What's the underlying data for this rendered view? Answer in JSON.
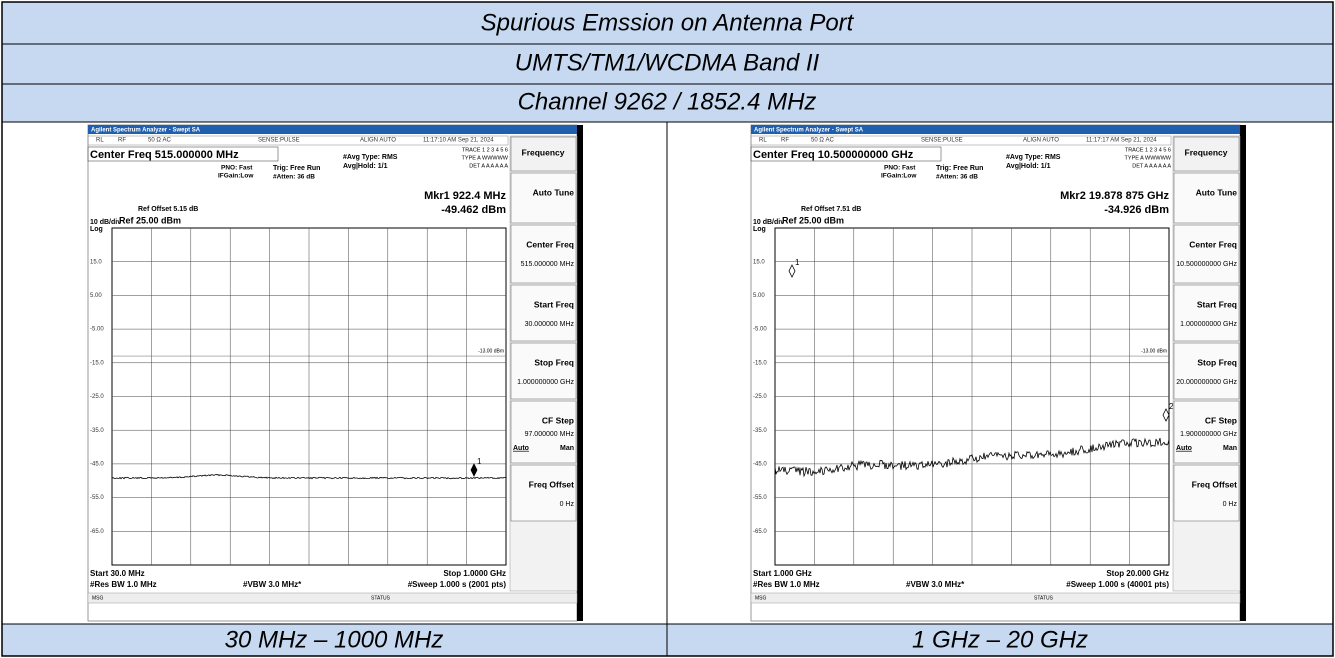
{
  "header": {
    "rows": [
      "Spurious Emssion on Antenna Port",
      "UMTS/TM1/WCDMA Band II",
      "Channel 9262 / 1852.4 MHz"
    ]
  },
  "panels": [
    {
      "window_title": "Agilent Spectrum Analyzer - Swept SA",
      "status_bar": [
        "RL",
        "RF",
        "50 Ω  AC",
        "SENSE:PULSE",
        "ALIGN AUTO",
        "11:17:10 AM Sep 21, 2024"
      ],
      "center_freq": "Center Freq 515.000000 MHz",
      "pno": "PNO: Fast",
      "ifgain": "IFGain:Low",
      "trig": "Trig: Free Run",
      "atten": "#Atten: 36 dB",
      "avg_type": "#Avg Type: RMS",
      "avg_hold": "Avg|Hold: 1/1",
      "trace_info": [
        "TRACE 1 2 3 4 5 6",
        "TYPE A WWWWW",
        "DET A A A A A A"
      ],
      "ref_offset": "Ref Offset 5.15 dB",
      "scale": "10 dB/div",
      "log": "Log",
      "ref_level": "Ref 25.00 dBm",
      "marker_freq": "Mkr1 922.4 MHz",
      "marker_level": "-49.462 dBm",
      "yticks": [
        "15.0",
        "5.00",
        "-5.00",
        "-15.0",
        "-25.0",
        "-35.0",
        "-45.0",
        "-55.0",
        "-65.0"
      ],
      "limit_label": "-13.00 dBm",
      "markers": [
        "1"
      ],
      "start": "Start 30.0 MHz",
      "stop": "Stop 1.0000 GHz",
      "rbw": "#Res BW 1.0 MHz",
      "vbw": "#VBW 3.0 MHz*",
      "sweep": "#Sweep  1.000 s (2001 pts)",
      "msg": "MSG",
      "status": "STATUS",
      "softkeys": [
        {
          "label": "Frequency"
        },
        {
          "label": "Auto Tune"
        },
        {
          "label": "Center Freq",
          "value": "515.000000 MHz"
        },
        {
          "label": "Start Freq",
          "value": "30.000000 MHz"
        },
        {
          "label": "Stop Freq",
          "value": "1.000000000 GHz"
        },
        {
          "label": "CF Step",
          "value": "97.000000 MHz",
          "extra": [
            "Auto",
            "Man"
          ]
        },
        {
          "label": "Freq Offset",
          "value": "0 Hz"
        }
      ]
    },
    {
      "window_title": "Agilent Spectrum Analyzer - Swept SA",
      "status_bar": [
        "RL",
        "RF",
        "50 Ω  AC",
        "SENSE:PULSE",
        "ALIGN AUTO",
        "11:17:17 AM Sep 21, 2024"
      ],
      "center_freq": "Center Freq 10.500000000 GHz",
      "pno": "PNO: Fast",
      "ifgain": "IFGain:Low",
      "trig": "Trig: Free Run",
      "atten": "#Atten: 36 dB",
      "avg_type": "#Avg Type: RMS",
      "avg_hold": "Avg|Hold: 1/1",
      "trace_info": [
        "TRACE 1 2 3 4 5 6",
        "TYPE A WWWWW",
        "DET A A A A A A"
      ],
      "ref_offset": "Ref Offset 7.51 dB",
      "scale": "10 dB/div",
      "log": "Log",
      "ref_level": "Ref 25.00 dBm",
      "marker_freq": "Mkr2 19.878 875 GHz",
      "marker_level": "-34.926 dBm",
      "yticks": [
        "15.0",
        "5.00",
        "-5.00",
        "-15.0",
        "-25.0",
        "-35.0",
        "-45.0",
        "-55.0",
        "-65.0"
      ],
      "limit_label": "-13.00 dBm",
      "markers": [
        "1",
        "2"
      ],
      "start": "Start 1.000 GHz",
      "stop": "Stop 20.000 GHz",
      "rbw": "#Res BW 1.0 MHz",
      "vbw": "#VBW 3.0 MHz*",
      "sweep": "#Sweep  1.000 s (40001 pts)",
      "msg": "MSG",
      "status": "STATUS",
      "softkeys": [
        {
          "label": "Frequency"
        },
        {
          "label": "Auto Tune"
        },
        {
          "label": "Center Freq",
          "value": "10.500000000 GHz"
        },
        {
          "label": "Start Freq",
          "value": "1.000000000 GHz"
        },
        {
          "label": "Stop Freq",
          "value": "20.000000000 GHz"
        },
        {
          "label": "CF Step",
          "value": "1.900000000 GHz",
          "extra": [
            "Auto",
            "Man"
          ]
        },
        {
          "label": "Freq Offset",
          "value": "0 Hz"
        }
      ]
    }
  ],
  "footer": [
    "30 MHz – 1000 MHz",
    "1 GHz – 20 GHz"
  ]
}
